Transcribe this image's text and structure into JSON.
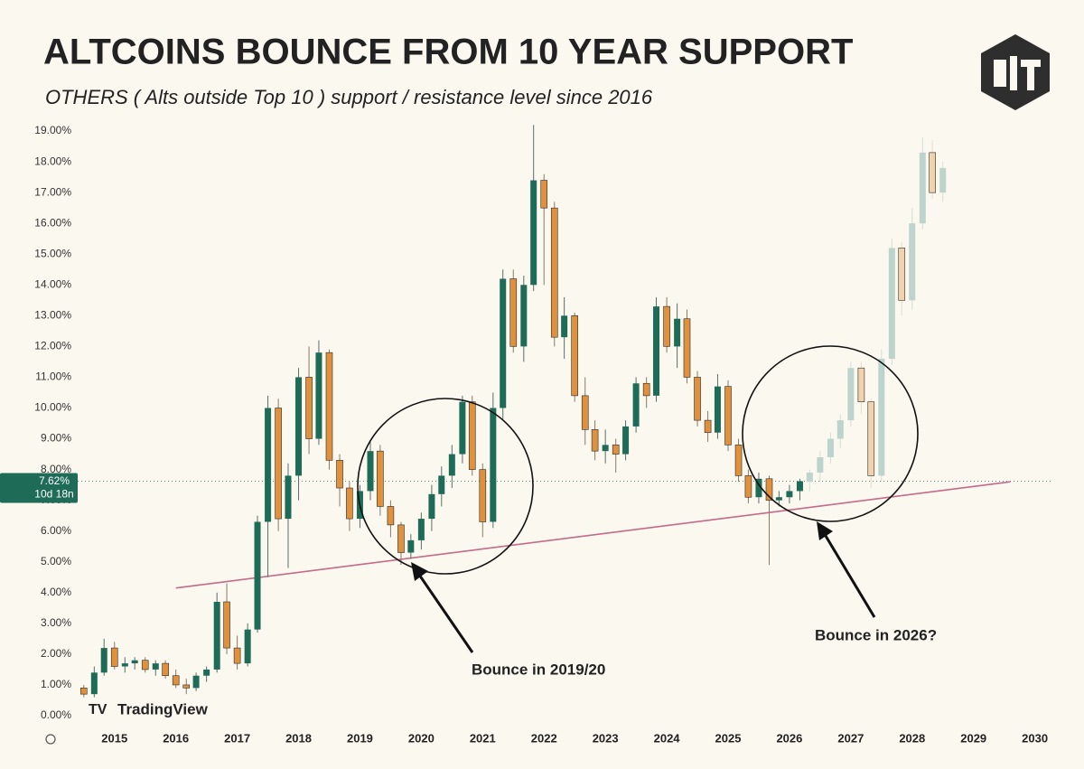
{
  "chart_data": {
    "type": "candlestick",
    "title": "ALTCOINS BOUNCE FROM 10 YEAR SUPPORT",
    "subtitle": "OTHERS ( Alts outside Top 10 ) support / resistance level since 2016",
    "watermark": "TradingView",
    "xlim": [
      2014.4,
      2030.3
    ],
    "xticks": [
      2015,
      2016,
      2017,
      2018,
      2019,
      2020,
      2021,
      2022,
      2023,
      2024,
      2025,
      2026,
      2027,
      2028,
      2029,
      2030
    ],
    "ylim": [
      -0.2,
      19.8
    ],
    "yticks": [
      {
        "value": 0,
        "label": "0.00%"
      },
      {
        "value": 1,
        "label": "1.00%"
      },
      {
        "value": 2,
        "label": "2.00%"
      },
      {
        "value": 3,
        "label": "3.00%"
      },
      {
        "value": 4,
        "label": "4.00%"
      },
      {
        "value": 5,
        "label": "5.00%"
      },
      {
        "value": 6,
        "label": "6.00%"
      },
      {
        "value": 7,
        "label": "7.00%"
      },
      {
        "value": 8,
        "label": "8.00%"
      },
      {
        "value": 9,
        "label": "9.00%"
      },
      {
        "value": 10,
        "label": "10.00%"
      },
      {
        "value": 11,
        "label": "11.00%"
      },
      {
        "value": 12,
        "label": "12.00%"
      },
      {
        "value": 13,
        "label": "13.00%"
      },
      {
        "value": 14,
        "label": "14.00%"
      },
      {
        "value": 15,
        "label": "15.00%"
      },
      {
        "value": 16,
        "label": "16.00%"
      },
      {
        "value": 17,
        "label": "17.00%"
      },
      {
        "value": 18,
        "label": "18.00%"
      },
      {
        "value": 19,
        "label": "19.00%"
      }
    ],
    "up_color": "#1e6b58",
    "down_color": "#e0913e",
    "projection_up_color": "#bcd4cb",
    "projection_down_color": "#f2d2ad",
    "candles": {
      "x": [
        2014.5,
        2014.67,
        2014.83,
        2015.0,
        2015.17,
        2015.33,
        2015.5,
        2015.67,
        2015.83,
        2016.0,
        2016.17,
        2016.33,
        2016.5,
        2016.67,
        2016.83,
        2017.0,
        2017.17,
        2017.33,
        2017.5,
        2017.67,
        2017.83,
        2018.0,
        2018.17,
        2018.33,
        2018.5,
        2018.67,
        2018.83,
        2019.0,
        2019.17,
        2019.33,
        2019.5,
        2019.67,
        2019.83,
        2020.0,
        2020.17,
        2020.33,
        2020.5,
        2020.67,
        2020.83,
        2021.0,
        2021.17,
        2021.33,
        2021.5,
        2021.67,
        2021.83,
        2022.0,
        2022.17,
        2022.33,
        2022.5,
        2022.67,
        2022.83,
        2023.0,
        2023.17,
        2023.33,
        2023.5,
        2023.67,
        2023.83,
        2024.0,
        2024.17,
        2024.33,
        2024.5,
        2024.67,
        2024.83,
        2025.0,
        2025.17,
        2025.33,
        2025.5,
        2025.67,
        2025.83,
        2026.0,
        2026.17
      ],
      "open": [
        0.9,
        0.7,
        1.4,
        2.2,
        1.6,
        1.7,
        1.8,
        1.5,
        1.7,
        1.3,
        1.0,
        0.9,
        1.3,
        1.5,
        3.7,
        2.2,
        1.7,
        2.8,
        6.3,
        10.0,
        6.4,
        7.8,
        11.0,
        9.0,
        11.8,
        8.3,
        7.4,
        6.4,
        7.3,
        8.6,
        6.8,
        6.2,
        5.3,
        5.7,
        6.4,
        7.2,
        7.8,
        8.5,
        10.2,
        8.0,
        6.3,
        10.0,
        14.2,
        12.0,
        14.0,
        17.4,
        16.5,
        12.3,
        13.0,
        10.4,
        9.3,
        8.6,
        8.8,
        8.5,
        9.4,
        10.8,
        10.4,
        13.3,
        12.0,
        12.9,
        11.0,
        9.6,
        9.2,
        10.7,
        8.8,
        7.8,
        7.1,
        7.7,
        7.0,
        7.1,
        7.3
      ],
      "high": [
        1.0,
        1.6,
        2.5,
        2.4,
        1.9,
        1.9,
        1.9,
        1.8,
        1.8,
        1.5,
        1.2,
        1.4,
        1.6,
        4.0,
        4.3,
        2.6,
        3.0,
        6.5,
        10.4,
        10.3,
        8.2,
        11.3,
        12.0,
        12.2,
        11.9,
        8.5,
        7.6,
        7.5,
        8.9,
        8.8,
        7.0,
        6.3,
        5.9,
        6.6,
        7.5,
        8.1,
        8.8,
        10.4,
        10.4,
        8.2,
        10.5,
        14.5,
        14.5,
        14.3,
        19.2,
        17.6,
        16.7,
        13.6,
        13.1,
        11.0,
        9.6,
        9.3,
        9.0,
        9.6,
        11.0,
        11.0,
        13.6,
        13.6,
        13.4,
        13.2,
        11.2,
        9.9,
        11.1,
        10.9,
        9.0,
        8.0,
        7.9,
        7.8,
        7.3,
        7.5,
        7.7
      ],
      "low": [
        0.6,
        0.6,
        1.3,
        1.5,
        1.4,
        1.5,
        1.4,
        1.3,
        1.2,
        0.9,
        0.7,
        0.8,
        1.1,
        1.4,
        2.0,
        1.5,
        1.6,
        2.7,
        4.5,
        6.0,
        4.8,
        7.0,
        8.5,
        8.8,
        8.0,
        6.8,
        6.0,
        6.1,
        7.0,
        6.5,
        5.8,
        4.9,
        5.1,
        5.4,
        6.0,
        6.8,
        7.4,
        8.2,
        7.8,
        5.8,
        6.1,
        9.6,
        11.8,
        11.5,
        13.8,
        14.0,
        12.0,
        11.6,
        10.2,
        8.8,
        8.3,
        8.2,
        7.9,
        8.3,
        9.2,
        10.0,
        10.2,
        11.8,
        11.3,
        10.8,
        9.4,
        8.9,
        9.0,
        8.6,
        7.6,
        6.9,
        6.9,
        4.9,
        6.8,
        6.9,
        7.0
      ],
      "close": [
        0.7,
        1.4,
        2.2,
        1.6,
        1.7,
        1.8,
        1.5,
        1.7,
        1.3,
        1.0,
        0.9,
        1.3,
        1.5,
        3.7,
        2.2,
        1.7,
        2.8,
        6.3,
        10.0,
        6.4,
        7.8,
        11.0,
        9.0,
        11.8,
        8.3,
        7.4,
        6.4,
        7.3,
        8.6,
        6.8,
        6.2,
        5.3,
        5.7,
        6.4,
        7.2,
        7.8,
        8.5,
        10.2,
        8.0,
        6.3,
        10.0,
        14.2,
        12.0,
        14.0,
        17.4,
        16.5,
        12.3,
        13.0,
        10.4,
        9.3,
        8.6,
        8.8,
        8.5,
        9.4,
        10.8,
        10.4,
        13.3,
        12.0,
        12.9,
        11.0,
        9.6,
        9.2,
        10.7,
        8.8,
        7.8,
        7.1,
        7.7,
        7.0,
        7.1,
        7.3,
        7.62
      ]
    },
    "projection": {
      "x": [
        2026.33,
        2026.5,
        2026.67,
        2026.83,
        2027.0,
        2027.17,
        2027.33,
        2027.5,
        2027.67,
        2027.83,
        2028.0,
        2028.17,
        2028.33,
        2028.5
      ],
      "open": [
        7.6,
        7.9,
        8.4,
        9.0,
        9.6,
        11.3,
        10.2,
        7.8,
        11.6,
        15.2,
        13.5,
        16.0,
        18.3,
        17.0
      ],
      "high": [
        8.0,
        8.6,
        9.2,
        9.8,
        11.5,
        11.5,
        10.3,
        11.9,
        15.5,
        15.4,
        16.5,
        18.8,
        18.7,
        18.0
      ],
      "low": [
        7.3,
        7.6,
        8.2,
        8.7,
        9.4,
        9.8,
        7.4,
        7.6,
        11.4,
        13.0,
        13.2,
        15.8,
        16.8,
        16.7
      ],
      "close": [
        7.9,
        8.4,
        9.0,
        9.6,
        11.3,
        10.2,
        7.8,
        11.6,
        15.2,
        13.5,
        16.0,
        18.3,
        17.0,
        17.8
      ]
    },
    "support_line": {
      "x": [
        2016.0,
        2029.6
      ],
      "y": [
        4.15,
        7.6
      ],
      "color": "#c46a8a"
    },
    "last_price": {
      "value": 7.62,
      "label": "7.62%"
    },
    "countdown": "10d 18n",
    "annotations": [
      "Bounce in 2019/20",
      "Bounce in 2026?"
    ]
  }
}
